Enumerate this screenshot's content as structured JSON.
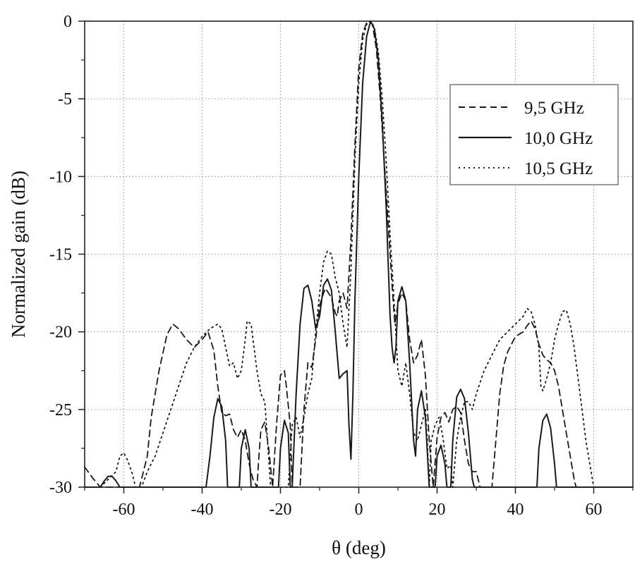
{
  "chart_data": {
    "type": "line",
    "title": "",
    "xlabel": "θ (deg)",
    "ylabel": "Normalized gain (dB)",
    "xlim": [
      -70,
      70
    ],
    "ylim": [
      -30,
      0
    ],
    "xticks": [
      -60,
      -40,
      -20,
      0,
      20,
      40,
      60
    ],
    "yticks": [
      0,
      -5,
      -10,
      -15,
      -20,
      -25,
      -30
    ],
    "grid": true,
    "legend_position": "top-right",
    "series": [
      {
        "name": "9,5 GHz",
        "style": "dashed",
        "color": "#1a1a1a",
        "points": [
          [
            -70,
            -28.7
          ],
          [
            -68,
            -29.4
          ],
          [
            -66,
            -30
          ],
          [
            -56,
            -30
          ],
          [
            -54,
            -28
          ],
          [
            -53,
            -25.5
          ],
          [
            -51,
            -22.5
          ],
          [
            -49,
            -20.2
          ],
          [
            -47.5,
            -19.5
          ],
          [
            -46,
            -19.8
          ],
          [
            -44,
            -20.5
          ],
          [
            -42,
            -21
          ],
          [
            -40,
            -20.5
          ],
          [
            -38.5,
            -20
          ],
          [
            -37,
            -21.2
          ],
          [
            -36,
            -23.5
          ],
          [
            -35,
            -25.2
          ],
          [
            -34,
            -25.4
          ],
          [
            -33,
            -25.3
          ],
          [
            -32,
            -26.3
          ],
          [
            -31,
            -26.8
          ],
          [
            -30,
            -26.3
          ],
          [
            -29,
            -27
          ],
          [
            -28,
            -28.5
          ],
          [
            -27,
            -29.5
          ],
          [
            -26,
            -30
          ],
          [
            -25.5,
            -28
          ],
          [
            -25,
            -26.3
          ],
          [
            -24,
            -25.8
          ],
          [
            -23,
            -27.5
          ],
          [
            -22,
            -30
          ],
          [
            -21,
            -26
          ],
          [
            -20,
            -22.8
          ],
          [
            -19,
            -22.5
          ],
          [
            -18.5,
            -23.5
          ],
          [
            -17.5,
            -26
          ],
          [
            -17,
            -30
          ],
          [
            -15,
            -30
          ],
          [
            -14,
            -25
          ],
          [
            -13,
            -22
          ],
          [
            -12,
            -22.3
          ],
          [
            -11,
            -20.5
          ],
          [
            -10,
            -18.3
          ],
          [
            -9,
            -17.5
          ],
          [
            -8.5,
            -17.2
          ],
          [
            -7,
            -17.8
          ],
          [
            -6,
            -18.8
          ],
          [
            -5.5,
            -19
          ],
          [
            -5,
            -18
          ],
          [
            -4,
            -17.5
          ],
          [
            -3,
            -18.5
          ],
          [
            -2,
            -14
          ],
          [
            -1,
            -8
          ],
          [
            0,
            -3
          ],
          [
            1,
            -0.8
          ],
          [
            2,
            -0.1
          ],
          [
            2.5,
            0
          ],
          [
            3.5,
            -0.2
          ],
          [
            4.5,
            -1.8
          ],
          [
            5.5,
            -5
          ],
          [
            6.5,
            -9
          ],
          [
            7.5,
            -13
          ],
          [
            8.5,
            -17
          ],
          [
            9.2,
            -19.5
          ],
          [
            10,
            -18.2
          ],
          [
            11,
            -17.5
          ],
          [
            12,
            -18
          ],
          [
            13,
            -20.5
          ],
          [
            14,
            -22
          ],
          [
            15,
            -21.5
          ],
          [
            16,
            -20.5
          ],
          [
            17,
            -22.8
          ],
          [
            18,
            -27
          ],
          [
            19,
            -30
          ],
          [
            20,
            -26.8
          ],
          [
            21,
            -25.5
          ],
          [
            22,
            -25.2
          ],
          [
            23,
            -25.8
          ],
          [
            24,
            -25
          ],
          [
            25,
            -24.8
          ],
          [
            26,
            -25.2
          ],
          [
            27,
            -27
          ],
          [
            28,
            -28.5
          ],
          [
            29,
            -29
          ],
          [
            30,
            -29
          ],
          [
            31,
            -30
          ],
          [
            34,
            -30
          ],
          [
            35,
            -27
          ],
          [
            36,
            -24
          ],
          [
            37,
            -22.2
          ],
          [
            38,
            -21.3
          ],
          [
            40,
            -20.3
          ],
          [
            42,
            -20
          ],
          [
            43,
            -19.6
          ],
          [
            44,
            -19.3
          ],
          [
            45,
            -19.8
          ],
          [
            46,
            -20.8
          ],
          [
            47,
            -21.5
          ],
          [
            48,
            -21.8
          ],
          [
            49,
            -22
          ],
          [
            50,
            -22.5
          ],
          [
            51,
            -23.5
          ],
          [
            52,
            -25
          ],
          [
            53,
            -26.5
          ],
          [
            54,
            -28
          ],
          [
            55,
            -29.5
          ],
          [
            55.5,
            -30
          ]
        ]
      },
      {
        "name": "10,0 GHz",
        "style": "solid",
        "color": "#1a1a1a",
        "points": [
          [
            -70,
            -30
          ],
          [
            -66,
            -30
          ],
          [
            -65,
            -29.6
          ],
          [
            -64,
            -29.3
          ],
          [
            -63,
            -29.3
          ],
          [
            -62,
            -29.6
          ],
          [
            -61,
            -30
          ],
          [
            -39,
            -30
          ],
          [
            -38,
            -28
          ],
          [
            -37,
            -25.5
          ],
          [
            -36,
            -24.3
          ],
          [
            -35,
            -24.8
          ],
          [
            -34,
            -27
          ],
          [
            -33.5,
            -30
          ],
          [
            -30.5,
            -30
          ],
          [
            -30,
            -27.5
          ],
          [
            -29,
            -26.3
          ],
          [
            -28,
            -27.5
          ],
          [
            -27.5,
            -30
          ],
          [
            -20.5,
            -30
          ],
          [
            -20,
            -27.5
          ],
          [
            -19,
            -25.7
          ],
          [
            -18,
            -26.5
          ],
          [
            -17.5,
            -30
          ],
          [
            -17,
            -30
          ],
          [
            -16,
            -24
          ],
          [
            -15,
            -19.5
          ],
          [
            -14,
            -17.2
          ],
          [
            -13,
            -17
          ],
          [
            -12,
            -18
          ],
          [
            -11,
            -19.8
          ],
          [
            -10,
            -19
          ],
          [
            -9,
            -17
          ],
          [
            -8,
            -16.6
          ],
          [
            -7,
            -17.3
          ],
          [
            -6,
            -20
          ],
          [
            -5,
            -23
          ],
          [
            -4,
            -22.7
          ],
          [
            -3,
            -22.5
          ],
          [
            -2.5,
            -26
          ],
          [
            -2,
            -28.2
          ],
          [
            -1.5,
            -24
          ],
          [
            -1,
            -18
          ],
          [
            0,
            -10
          ],
          [
            1,
            -4
          ],
          [
            2,
            -1
          ],
          [
            3,
            0
          ],
          [
            4,
            -0.5
          ],
          [
            5,
            -2.5
          ],
          [
            6,
            -6.5
          ],
          [
            7,
            -12
          ],
          [
            7.5,
            -15.5
          ],
          [
            8,
            -19
          ],
          [
            8.5,
            -21
          ],
          [
            9,
            -22
          ],
          [
            9.5,
            -21
          ],
          [
            10,
            -18
          ],
          [
            11,
            -17.1
          ],
          [
            12,
            -18
          ],
          [
            13,
            -22
          ],
          [
            14,
            -27
          ],
          [
            14.5,
            -28
          ],
          [
            15,
            -25
          ],
          [
            16,
            -23.8
          ],
          [
            17,
            -25.5
          ],
          [
            18,
            -30
          ],
          [
            19.5,
            -30
          ],
          [
            20,
            -28
          ],
          [
            21,
            -27.3
          ],
          [
            22,
            -28.5
          ],
          [
            22.5,
            -30
          ],
          [
            23.5,
            -30
          ],
          [
            24,
            -27
          ],
          [
            25,
            -24.2
          ],
          [
            26,
            -23.7
          ],
          [
            27,
            -24.3
          ],
          [
            28,
            -26.5
          ],
          [
            29,
            -29.5
          ],
          [
            29.5,
            -30
          ],
          [
            45.5,
            -30
          ],
          [
            46,
            -27.5
          ],
          [
            47,
            -25.7
          ],
          [
            48,
            -25.3
          ],
          [
            49,
            -26.2
          ],
          [
            50,
            -28.5
          ],
          [
            50.5,
            -30
          ],
          [
            70,
            -30
          ]
        ]
      },
      {
        "name": "10,5 GHz",
        "style": "dotted",
        "color": "#1a1a1a",
        "points": [
          [
            -66,
            -30
          ],
          [
            -62,
            -29
          ],
          [
            -61,
            -28
          ],
          [
            -60,
            -27.8
          ],
          [
            -59,
            -28.3
          ],
          [
            -58,
            -29
          ],
          [
            -57,
            -30
          ],
          [
            -55.5,
            -30
          ],
          [
            -54,
            -29
          ],
          [
            -53,
            -28.5
          ],
          [
            -52,
            -28
          ],
          [
            -50,
            -26.5
          ],
          [
            -48,
            -25
          ],
          [
            -46,
            -23.5
          ],
          [
            -44,
            -22
          ],
          [
            -42,
            -21
          ],
          [
            -40,
            -20.3
          ],
          [
            -38,
            -19.8
          ],
          [
            -36,
            -19.5
          ],
          [
            -35,
            -19.8
          ],
          [
            -34,
            -21
          ],
          [
            -33,
            -22.2
          ],
          [
            -32,
            -22
          ],
          [
            -31,
            -23
          ],
          [
            -30,
            -22.5
          ],
          [
            -29,
            -20.5
          ],
          [
            -28.5,
            -19.3
          ],
          [
            -27.5,
            -19.5
          ],
          [
            -27,
            -20.5
          ],
          [
            -26,
            -22.5
          ],
          [
            -25,
            -24
          ],
          [
            -24,
            -24.5
          ],
          [
            -22.5,
            -30
          ],
          [
            -18,
            -30
          ],
          [
            -17,
            -26
          ],
          [
            -16,
            -25.5
          ],
          [
            -15,
            -26.8
          ],
          [
            -14,
            -25.5
          ],
          [
            -13,
            -24
          ],
          [
            -12,
            -23
          ],
          [
            -11,
            -20
          ],
          [
            -10,
            -17.5
          ],
          [
            -9,
            -15.5
          ],
          [
            -8,
            -14.8
          ],
          [
            -7,
            -15
          ],
          [
            -6,
            -16.5
          ],
          [
            -5,
            -17.5
          ],
          [
            -4,
            -19.5
          ],
          [
            -3,
            -21
          ],
          [
            -2,
            -16
          ],
          [
            -1,
            -9
          ],
          [
            0,
            -4
          ],
          [
            1,
            -1.2
          ],
          [
            2,
            -0.2
          ],
          [
            3,
            0
          ],
          [
            4,
            -0.4
          ],
          [
            5,
            -2
          ],
          [
            6,
            -5
          ],
          [
            7,
            -9
          ],
          [
            8,
            -13.8
          ],
          [
            9,
            -18
          ],
          [
            10,
            -22.5
          ],
          [
            11,
            -23.5
          ],
          [
            12,
            -22
          ],
          [
            13,
            -24
          ],
          [
            14,
            -26.5
          ],
          [
            15,
            -27
          ],
          [
            16,
            -26
          ],
          [
            17,
            -25
          ],
          [
            17.5,
            -27
          ],
          [
            18,
            -30
          ],
          [
            18.5,
            -27
          ],
          [
            19.5,
            -26
          ],
          [
            20.5,
            -25.5
          ],
          [
            21.5,
            -26.8
          ],
          [
            22.5,
            -28.8
          ],
          [
            23.5,
            -28.6
          ],
          [
            24,
            -30
          ],
          [
            25,
            -27
          ],
          [
            26,
            -25.5
          ],
          [
            27,
            -24.5
          ],
          [
            28,
            -24.5
          ],
          [
            29,
            -25
          ],
          [
            30,
            -24
          ],
          [
            32,
            -22.5
          ],
          [
            34,
            -21.5
          ],
          [
            36,
            -20.5
          ],
          [
            38,
            -20
          ],
          [
            40,
            -19.5
          ],
          [
            42,
            -19
          ],
          [
            43,
            -18.5
          ],
          [
            44,
            -18.7
          ],
          [
            45,
            -19.5
          ],
          [
            46,
            -21
          ],
          [
            46.5,
            -23.5
          ],
          [
            47,
            -23.8
          ],
          [
            48,
            -23
          ],
          [
            49,
            -22
          ],
          [
            50,
            -20.5
          ],
          [
            51,
            -19.5
          ],
          [
            52,
            -18.7
          ],
          [
            53,
            -18.6
          ],
          [
            54,
            -19.5
          ],
          [
            55,
            -21
          ],
          [
            56,
            -23
          ],
          [
            57,
            -25
          ],
          [
            58,
            -27
          ],
          [
            59,
            -28.5
          ],
          [
            60,
            -30
          ]
        ]
      }
    ]
  }
}
